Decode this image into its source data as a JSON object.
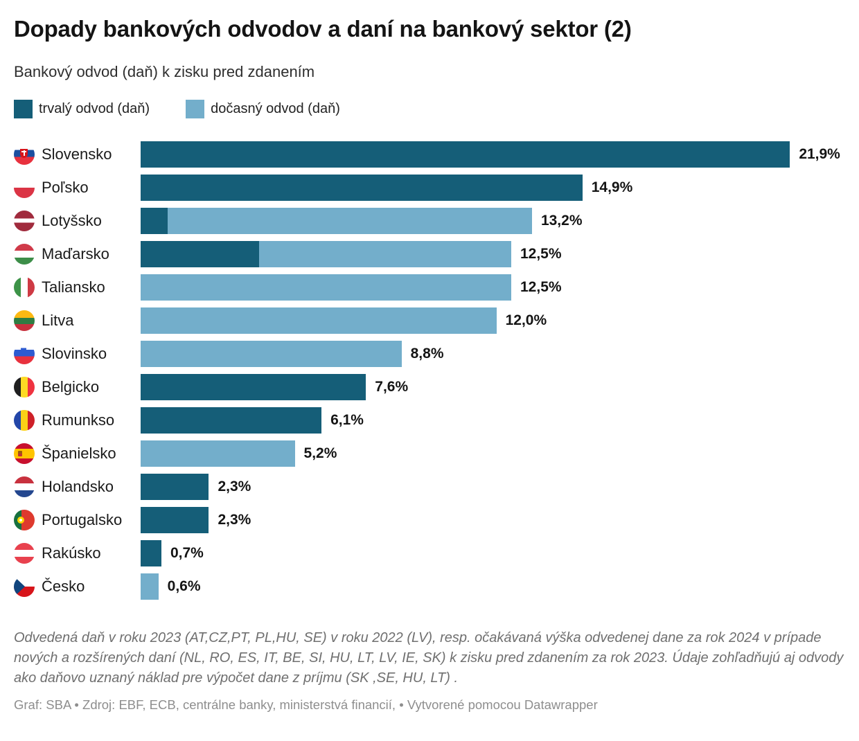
{
  "header": {
    "title": "Dopady bankových odvodov a daní na bankový sektor (2)",
    "subtitle": "Bankový odvod (daň) k zisku pred zdanením"
  },
  "legend": {
    "items": [
      {
        "label": "trvalý odvod (daň)",
        "color": "#155E78"
      },
      {
        "label": "dočasný odvod (daň)",
        "color": "#73AECB"
      }
    ]
  },
  "chart_data": {
    "type": "bar",
    "orientation": "horizontal",
    "title": "Dopady bankových odvodov a daní na bankový sektor (2)",
    "subtitle": "Bankový odvod (daň) k zisku pred zdanením",
    "unit": "%",
    "xlim": [
      0,
      22
    ],
    "grid": false,
    "legend_position": "top",
    "colors": {
      "permanent": "#155E78",
      "temporary": "#73AECB"
    },
    "categories": [
      "Slovensko",
      "Poľsko",
      "Lotyšsko",
      "Maďarsko",
      "Taliansko",
      "Litva",
      "Slovinsko",
      "Belgicko",
      "Rumunkso",
      "Španielsko",
      "Holandsko",
      "Portugalsko",
      "Rakúsko",
      "Česko"
    ],
    "series": [
      {
        "name": "trvalý odvod (daň)",
        "key": "permanent",
        "values": [
          21.9,
          14.9,
          0.9,
          4.0,
          0,
          0,
          0,
          7.6,
          6.1,
          0,
          2.3,
          2.3,
          0.7,
          0
        ]
      },
      {
        "name": "dočasný odvod (daň)",
        "key": "temporary",
        "values": [
          0,
          0,
          12.3,
          8.5,
          12.5,
          12.0,
          8.8,
          0,
          0,
          5.2,
          0,
          0,
          0,
          0.6
        ]
      }
    ],
    "rows": [
      {
        "country": "Slovensko",
        "flag": "sk",
        "total": 21.9,
        "value_label": "21,9%",
        "permanent": 21.9,
        "temporary": 0
      },
      {
        "country": "Poľsko",
        "flag": "pl",
        "total": 14.9,
        "value_label": "14,9%",
        "permanent": 14.9,
        "temporary": 0
      },
      {
        "country": "Lotyšsko",
        "flag": "lv",
        "total": 13.2,
        "value_label": "13,2%",
        "permanent": 0.9,
        "temporary": 12.3
      },
      {
        "country": "Maďarsko",
        "flag": "hu",
        "total": 12.5,
        "value_label": "12,5%",
        "permanent": 4.0,
        "temporary": 8.5
      },
      {
        "country": "Taliansko",
        "flag": "it",
        "total": 12.5,
        "value_label": "12,5%",
        "permanent": 0,
        "temporary": 12.5
      },
      {
        "country": "Litva",
        "flag": "lt",
        "total": 12.0,
        "value_label": "12,0%",
        "permanent": 0,
        "temporary": 12.0
      },
      {
        "country": "Slovinsko",
        "flag": "si",
        "total": 8.8,
        "value_label": "8,8%",
        "permanent": 0,
        "temporary": 8.8
      },
      {
        "country": "Belgicko",
        "flag": "be",
        "total": 7.6,
        "value_label": "7,6%",
        "permanent": 7.6,
        "temporary": 0
      },
      {
        "country": "Rumunkso",
        "flag": "ro",
        "total": 6.1,
        "value_label": "6,1%",
        "permanent": 6.1,
        "temporary": 0
      },
      {
        "country": "Španielsko",
        "flag": "es",
        "total": 5.2,
        "value_label": "5,2%",
        "permanent": 0,
        "temporary": 5.2
      },
      {
        "country": "Holandsko",
        "flag": "nl",
        "total": 2.3,
        "value_label": "2,3%",
        "permanent": 2.3,
        "temporary": 0
      },
      {
        "country": "Portugalsko",
        "flag": "pt",
        "total": 2.3,
        "value_label": "2,3%",
        "permanent": 2.3,
        "temporary": 0
      },
      {
        "country": "Rakúsko",
        "flag": "at",
        "total": 0.7,
        "value_label": "0,7%",
        "permanent": 0.7,
        "temporary": 0
      },
      {
        "country": "Česko",
        "flag": "cz",
        "total": 0.6,
        "value_label": "0,6%",
        "permanent": 0,
        "temporary": 0.6
      }
    ]
  },
  "footer": {
    "note": "Odvedená daň v roku 2023 (AT,CZ,PT, PL,HU, SE) v roku 2022 (LV), resp. očakávaná výška odvedenej dane za rok 2024 v prípade nových a rozšírených daní (NL, RO, ES, IT, BE, SI, HU, LT, LV, IE, SK) k zisku pred zdanením za rok 2023. Údaje zohľadňujú aj odvody ako daňovo uznaný náklad pre výpočet dane z príjmu (SK ,SE, HU, LT) .",
    "credit": "Graf: SBA • Zdroj: EBF, ECB, centrálne banky, ministerstvá financií, • Vytvorené pomocou Datawrapper"
  }
}
